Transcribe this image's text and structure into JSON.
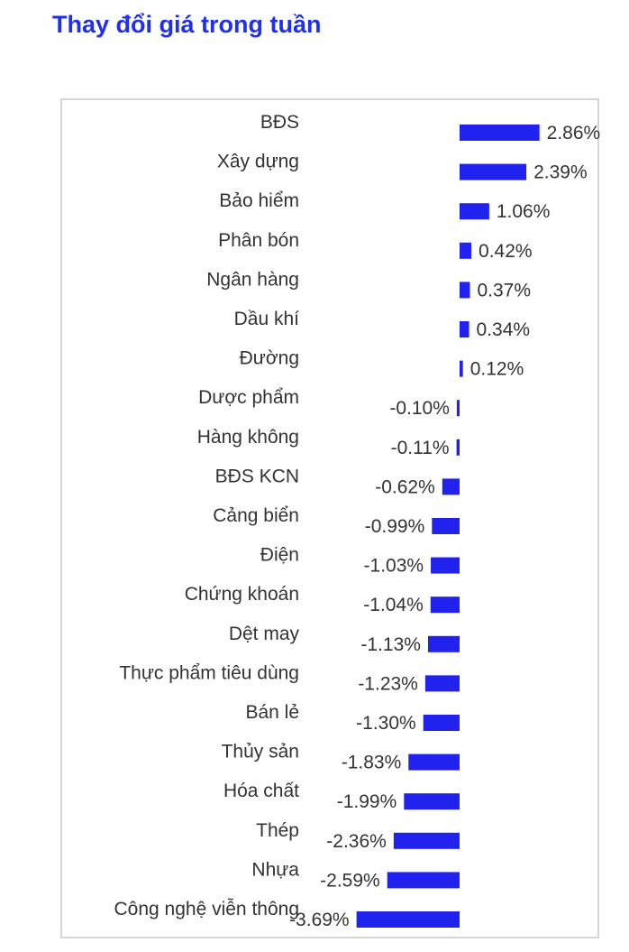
{
  "title": "Thay đổi giá trong tuần",
  "colors": {
    "title": "#1f2ff0",
    "bar": "#2222ee",
    "text": "#333333",
    "border": "#d6d6d6"
  },
  "chart_data": {
    "type": "bar",
    "orientation": "horizontal",
    "categories": [
      "BĐS",
      "Xây dựng",
      "Bảo hiểm",
      "Phân bón",
      "Ngân hàng",
      "Dầu khí",
      "Đường",
      "Dược phẩm",
      "Hàng không",
      "BĐS KCN",
      "Cảng biển",
      "Điện",
      "Chứng khoán",
      "Dệt may",
      "Thực phẩm tiêu dùng",
      "Bán lẻ",
      "Thủy sản",
      "Hóa chất",
      "Thép",
      "Nhựa",
      "Công nghệ viễn thông"
    ],
    "values": [
      2.86,
      2.39,
      1.06,
      0.42,
      0.37,
      0.34,
      0.12,
      -0.1,
      -0.11,
      -0.62,
      -0.99,
      -1.03,
      -1.04,
      -1.13,
      -1.23,
      -1.3,
      -1.83,
      -1.99,
      -2.36,
      -2.59,
      -3.69
    ],
    "labels": [
      "2.86%",
      "2.39%",
      "1.06%",
      "0.42%",
      "0.37%",
      "0.34%",
      "0.12%",
      "-0.10%",
      "-0.11%",
      "-0.62%",
      "-0.99%",
      "-1.03%",
      "-1.04%",
      "-1.13%",
      "-1.23%",
      "-1.30%",
      "-1.83%",
      "-1.99%",
      "-2.36%",
      "-2.59%",
      "-3.69%"
    ],
    "title": "Thay đổi giá trong tuần",
    "xlabel": "",
    "ylabel": "",
    "grid": false
  }
}
